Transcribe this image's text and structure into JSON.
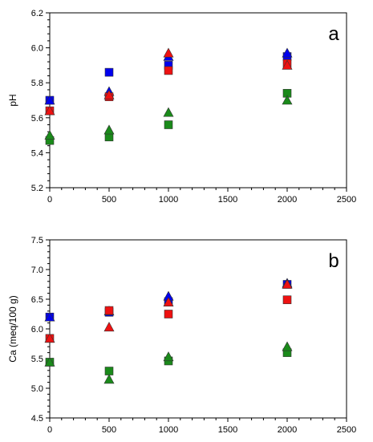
{
  "chart_data": [
    {
      "type": "scatter",
      "panel_label": "a",
      "ylabel": "pH",
      "xlabel": "",
      "xlim": [
        0,
        2500
      ],
      "ylim": [
        5.2,
        6.2
      ],
      "xticks": [
        0,
        500,
        1000,
        1500,
        2000,
        2500
      ],
      "yticks": [
        5.2,
        5.4,
        5.6,
        5.8,
        6.0,
        6.2
      ],
      "ytick_labels": [
        "5.2",
        "5.4",
        "5.6",
        "5.8",
        "6.0",
        "6.2"
      ],
      "grid": false,
      "series": [
        {
          "marker": "square",
          "color": "#0000ee",
          "x": [
            0,
            500,
            1000,
            2000
          ],
          "y": [
            5.7,
            5.86,
            5.9,
            5.95
          ]
        },
        {
          "marker": "triangle",
          "color": "#0000ee",
          "x": [
            0,
            500,
            1000,
            2000
          ],
          "y": [
            5.7,
            5.75,
            5.95,
            5.97
          ]
        },
        {
          "marker": "square",
          "color": "#ee1111",
          "x": [
            0,
            500,
            1000,
            2000
          ],
          "y": [
            5.64,
            5.72,
            5.87,
            5.91
          ]
        },
        {
          "marker": "triangle",
          "color": "#ee1111",
          "x": [
            0,
            500,
            1000,
            2000
          ],
          "y": [
            5.64,
            5.73,
            5.97,
            5.9
          ]
        },
        {
          "marker": "square",
          "color": "#1a8a1a",
          "x": [
            0,
            500,
            1000,
            2000
          ],
          "y": [
            5.47,
            5.49,
            5.56,
            5.74
          ]
        },
        {
          "marker": "triangle",
          "color": "#1a8a1a",
          "x": [
            0,
            500,
            1000,
            2000
          ],
          "y": [
            5.5,
            5.53,
            5.63,
            5.7
          ]
        }
      ]
    },
    {
      "type": "scatter",
      "panel_label": "b",
      "ylabel": "Ca (meq/100 g)",
      "xlabel": "",
      "xlim": [
        0,
        2500
      ],
      "ylim": [
        4.5,
        7.5
      ],
      "xticks": [
        0,
        500,
        1000,
        1500,
        2000,
        2500
      ],
      "yticks": [
        4.5,
        5.0,
        5.5,
        6.0,
        6.5,
        7.0,
        7.5
      ],
      "ytick_labels": [
        "4.5",
        "5.0",
        "5.5",
        "6.0",
        "6.5",
        "7.0",
        "7.5"
      ],
      "grid": false,
      "series": [
        {
          "marker": "square",
          "color": "#0000ee",
          "x": [
            0,
            500,
            1000,
            2000
          ],
          "y": [
            6.2,
            6.28,
            6.46,
            6.75
          ]
        },
        {
          "marker": "triangle",
          "color": "#0000ee",
          "x": [
            0,
            500,
            1000,
            2000
          ],
          "y": [
            6.2,
            6.3,
            6.55,
            6.77
          ]
        },
        {
          "marker": "square",
          "color": "#ee1111",
          "x": [
            0,
            500,
            1000,
            2000
          ],
          "y": [
            5.84,
            6.31,
            6.25,
            6.49
          ]
        },
        {
          "marker": "triangle",
          "color": "#ee1111",
          "x": [
            0,
            500,
            1000,
            2000
          ],
          "y": [
            5.84,
            6.03,
            6.45,
            6.75
          ]
        },
        {
          "marker": "square",
          "color": "#1a8a1a",
          "x": [
            0,
            500,
            1000,
            2000
          ],
          "y": [
            5.44,
            5.29,
            5.46,
            5.6
          ]
        },
        {
          "marker": "triangle",
          "color": "#1a8a1a",
          "x": [
            0,
            500,
            1000,
            2000
          ],
          "y": [
            5.44,
            5.15,
            5.53,
            5.7
          ]
        }
      ]
    }
  ]
}
